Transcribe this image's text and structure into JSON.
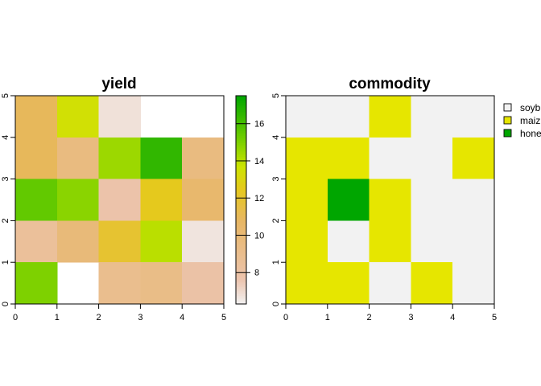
{
  "chart_data": [
    {
      "type": "heatmap",
      "title": "yield",
      "x_ticks": [
        "0",
        "1",
        "2",
        "3",
        "4",
        "5"
      ],
      "y_ticks": [
        "0",
        "1",
        "2",
        "3",
        "4",
        "5"
      ],
      "xlim": [
        0,
        5
      ],
      "ylim": [
        0,
        5
      ],
      "grid": false,
      "note_rows": "values listed from top row (y 4-5) to bottom row (y 0-1); null = no data",
      "values": [
        [
          11,
          13.5,
          6.8,
          null,
          null
        ],
        [
          11,
          9.6,
          14.5,
          16.5,
          9.6
        ],
        [
          15.5,
          14.8,
          7.8,
          12.5,
          10.4
        ],
        [
          8.5,
          9.9,
          12,
          14,
          6.7
        ],
        [
          15,
          null,
          9,
          9.3,
          8
        ]
      ],
      "colorbar": {
        "ticks": [
          "8",
          "10",
          "12",
          "14",
          "16"
        ],
        "tick_values": [
          8,
          10,
          12,
          14,
          16
        ],
        "range": [
          6.3,
          17.5
        ]
      }
    },
    {
      "type": "heatmap",
      "title": "commodity",
      "x_ticks": [
        "0",
        "1",
        "2",
        "3",
        "4",
        "5"
      ],
      "y_ticks": [
        "0",
        "1",
        "2",
        "3",
        "4",
        "5"
      ],
      "xlim": [
        0,
        5
      ],
      "ylim": [
        0,
        5
      ],
      "grid": false,
      "categories": [
        "soybean",
        "maize",
        "honey"
      ],
      "legend_labels": [
        "soyb",
        "maiz",
        "hone"
      ],
      "category_colors": [
        "#f2f2f2",
        "#e6e600",
        "#00a600"
      ],
      "legend_position": "right",
      "values": [
        [
          "soybean",
          "soybean",
          "maize",
          "soybean",
          "soybean"
        ],
        [
          "maize",
          "maize",
          "soybean",
          "soybean",
          "maize"
        ],
        [
          "maize",
          "honey",
          "maize",
          "soybean",
          "soybean"
        ],
        [
          "maize",
          "soybean",
          "maize",
          "soybean",
          "soybean"
        ],
        [
          "maize",
          "maize",
          "soybean",
          "maize",
          "soybean"
        ]
      ]
    }
  ]
}
